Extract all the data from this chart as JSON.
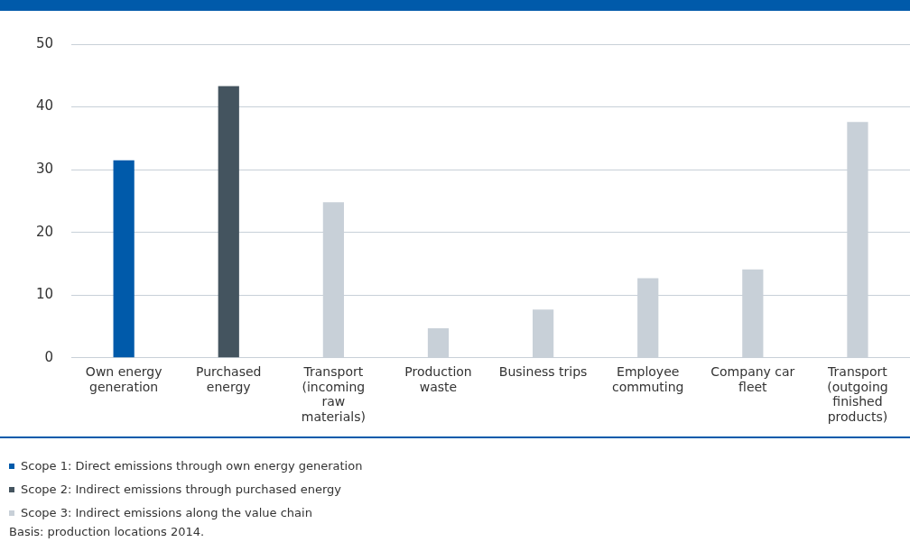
{
  "chart_data": {
    "type": "bar",
    "categories": [
      "Own energy generation",
      "Purchased energy",
      "Transport (incoming raw materials)",
      "Production waste",
      "Business trips",
      "Employee commuting",
      "Company car fleet",
      "Transport (outgoing finished products)"
    ],
    "series": [
      {
        "name": "Scope 1: Direct emissions through own energy generation",
        "color": "#005aaa",
        "values": [
          31.5,
          null,
          null,
          null,
          null,
          null,
          null,
          null
        ]
      },
      {
        "name": "Scope 2: Indirect emissions through purchased energy",
        "color": "#44545f",
        "values": [
          null,
          43.3,
          null,
          null,
          null,
          null,
          null,
          null
        ]
      },
      {
        "name": "Scope 3: Indirect emissions along the value chain",
        "color": "#c8d0d8",
        "values": [
          null,
          null,
          24.8,
          4.7,
          7.7,
          12.7,
          14.1,
          37.6
        ]
      }
    ],
    "ylim": [
      0,
      50
    ],
    "yticks": [
      0,
      10,
      20,
      30,
      40,
      50
    ],
    "grid": "y",
    "legend": "bottom",
    "annotations": [
      "Basis: production locations 2014."
    ]
  }
}
